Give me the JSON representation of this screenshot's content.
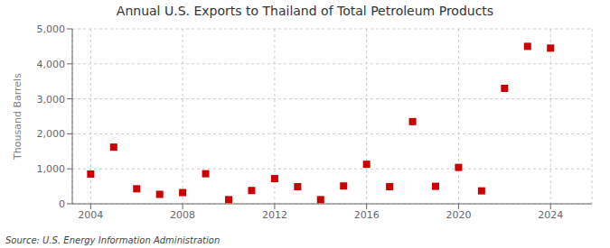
{
  "chart_data": {
    "type": "scatter",
    "title": "Annual U.S. Exports to Thailand of Total Petroleum Products",
    "y_label": "Thousand Barrels",
    "annotations": [
      "Source: U.S. Energy Information Administration"
    ],
    "x": [
      2004,
      2005,
      2006,
      2007,
      2008,
      2009,
      2010,
      2011,
      2012,
      2013,
      2014,
      2015,
      2016,
      2017,
      2018,
      2019,
      2020,
      2021,
      2022,
      2023,
      2024
    ],
    "values": [
      850,
      1620,
      430,
      270,
      320,
      860,
      120,
      380,
      720,
      490,
      120,
      510,
      1130,
      490,
      2350,
      500,
      1040,
      370,
      3300,
      4500,
      4450
    ],
    "color": "#cc0000",
    "marker": "square",
    "xlim": [
      2003.2,
      2025.8
    ],
    "ylim": [
      0,
      5000
    ],
    "xticks": [
      2004,
      2008,
      2012,
      2016,
      2020,
      2024
    ],
    "yticks": [
      0,
      {
        "value": 1000,
        "label": "1,000"
      },
      {
        "value": 2000,
        "label": "2,000"
      },
      {
        "value": 3000,
        "label": "3,000"
      },
      {
        "value": 4000,
        "label": "4,000"
      },
      {
        "value": 5000,
        "label": "5,000"
      }
    ],
    "grid": true
  }
}
